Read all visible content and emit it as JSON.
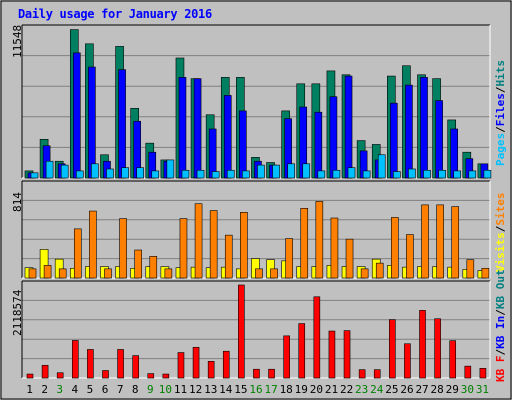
{
  "chart_data": [
    {
      "type": "bar",
      "title": "Daily usage for January 2016",
      "panel": "top",
      "ymax_label": "11548",
      "ylim": [
        0,
        11548
      ],
      "legend": [
        {
          "text": "Pages",
          "color": "#00c0ff"
        },
        {
          "text": "/",
          "color": "#000000"
        },
        {
          "text": "Files",
          "color": "#0000ff"
        },
        {
          "text": "/",
          "color": "#000000"
        },
        {
          "text": "Hits",
          "color": "#008080"
        }
      ],
      "categories": [
        "1",
        "2",
        "3",
        "4",
        "5",
        "6",
        "7",
        "8",
        "9",
        "10",
        "11",
        "12",
        "13",
        "14",
        "15",
        "16",
        "17",
        "18",
        "19",
        "20",
        "21",
        "22",
        "23",
        "24",
        "25",
        "26",
        "27",
        "28",
        "29",
        "30",
        "31"
      ],
      "series": [
        {
          "name": "Hits",
          "color": "#008060",
          "values": [
            550,
            3000,
            1300,
            11500,
            10400,
            1800,
            10200,
            5400,
            2700,
            1400,
            9300,
            7700,
            4900,
            7800,
            7800,
            1600,
            1200,
            5200,
            7300,
            7300,
            8300,
            8000,
            2900,
            2600,
            7900,
            8700,
            8000,
            7700,
            4500,
            2000,
            1100
          ]
        },
        {
          "name": "Files",
          "color": "#0000ff",
          "values": [
            400,
            2500,
            1100,
            9700,
            8600,
            1300,
            8400,
            4400,
            2000,
            1300,
            7800,
            7700,
            3800,
            6400,
            5200,
            1300,
            1000,
            4600,
            5500,
            5100,
            6300,
            7900,
            2100,
            1400,
            5800,
            7200,
            7800,
            6000,
            3800,
            1500,
            1100
          ]
        },
        {
          "name": "Pages",
          "color": "#00c0ff",
          "values": [
            400,
            1300,
            1000,
            550,
            1100,
            700,
            800,
            800,
            550,
            1400,
            600,
            600,
            500,
            600,
            550,
            1000,
            1000,
            1100,
            1100,
            550,
            600,
            800,
            550,
            1800,
            500,
            700,
            600,
            600,
            550,
            550,
            600
          ]
        }
      ]
    },
    {
      "type": "bar",
      "panel": "middle",
      "ymax_label": "814",
      "ylim": [
        0,
        814
      ],
      "legend": [
        {
          "text": "Visits",
          "color": "#ffff00"
        },
        {
          "text": "/",
          "color": "#000000"
        },
        {
          "text": "Sites",
          "color": "#ff8000"
        }
      ],
      "categories": [
        "1",
        "2",
        "3",
        "4",
        "5",
        "6",
        "7",
        "8",
        "9",
        "10",
        "11",
        "12",
        "13",
        "14",
        "15",
        "16",
        "17",
        "18",
        "19",
        "20",
        "21",
        "22",
        "23",
        "24",
        "25",
        "26",
        "27",
        "28",
        "29",
        "30",
        "31"
      ],
      "series": [
        {
          "name": "Visits",
          "color": "#ffff00",
          "values": [
            90,
            250,
            165,
            85,
            100,
            100,
            100,
            85,
            100,
            100,
            90,
            95,
            90,
            95,
            80,
            170,
            160,
            150,
            100,
            100,
            110,
            100,
            100,
            165,
            110,
            95,
            100,
            100,
            95,
            75,
            65
          ]
        },
        {
          "name": "Sites",
          "color": "#ff8000",
          "values": [
            80,
            110,
            80,
            430,
            586,
            80,
            520,
            245,
            190,
            80,
            520,
            650,
            590,
            375,
            575,
            80,
            80,
            345,
            610,
            670,
            525,
            340,
            80,
            130,
            530,
            380,
            640,
            640,
            625,
            160,
            85
          ]
        }
      ]
    },
    {
      "type": "bar",
      "panel": "bottom",
      "ymax_label": "2118574",
      "ylim": [
        0,
        2118574
      ],
      "legend": [
        {
          "text": "KB F",
          "color": "#ff0000"
        },
        {
          "text": "/",
          "color": "#000000"
        },
        {
          "text": "KB In",
          "color": "#0000ff"
        },
        {
          "text": "/",
          "color": "#000000"
        },
        {
          "text": "KB Out",
          "color": "#008080"
        }
      ],
      "categories": [
        "1",
        "2",
        "3",
        "4",
        "5",
        "6",
        "7",
        "8",
        "9",
        "10",
        "11",
        "12",
        "13",
        "14",
        "15",
        "16",
        "17",
        "18",
        "19",
        "20",
        "21",
        "22",
        "23",
        "24",
        "25",
        "26",
        "27",
        "28",
        "29",
        "30",
        "31"
      ],
      "series": [
        {
          "name": "KB F",
          "color": "#ff0000",
          "values": [
            90000,
            290000,
            120000,
            855000,
            650000,
            170000,
            650000,
            510000,
            100000,
            90000,
            580000,
            700000,
            380000,
            610000,
            2118574,
            200000,
            200000,
            960000,
            1240000,
            1850000,
            1070000,
            1080000,
            190000,
            190000,
            1330000,
            780000,
            1540000,
            1350000,
            850000,
            270000,
            220000
          ]
        }
      ]
    }
  ],
  "x_labels": [
    {
      "text": "1",
      "color": "#000000"
    },
    {
      "text": "2",
      "color": "#000000"
    },
    {
      "text": "3",
      "color": "#008000"
    },
    {
      "text": "4",
      "color": "#000000"
    },
    {
      "text": "5",
      "color": "#000000"
    },
    {
      "text": "6",
      "color": "#000000"
    },
    {
      "text": "7",
      "color": "#000000"
    },
    {
      "text": "8",
      "color": "#000000"
    },
    {
      "text": "9",
      "color": "#008000"
    },
    {
      "text": "10",
      "color": "#008000"
    },
    {
      "text": "11",
      "color": "#000000"
    },
    {
      "text": "12",
      "color": "#000000"
    },
    {
      "text": "13",
      "color": "#000000"
    },
    {
      "text": "14",
      "color": "#000000"
    },
    {
      "text": "15",
      "color": "#000000"
    },
    {
      "text": "16",
      "color": "#008000"
    },
    {
      "text": "17",
      "color": "#008000"
    },
    {
      "text": "18",
      "color": "#000000"
    },
    {
      "text": "19",
      "color": "#000000"
    },
    {
      "text": "20",
      "color": "#000000"
    },
    {
      "text": "21",
      "color": "#000000"
    },
    {
      "text": "22",
      "color": "#000000"
    },
    {
      "text": "23",
      "color": "#008000"
    },
    {
      "text": "24",
      "color": "#008000"
    },
    {
      "text": "25",
      "color": "#000000"
    },
    {
      "text": "26",
      "color": "#000000"
    },
    {
      "text": "27",
      "color": "#000000"
    },
    {
      "text": "28",
      "color": "#000000"
    },
    {
      "text": "29",
      "color": "#000000"
    },
    {
      "text": "30",
      "color": "#008000"
    },
    {
      "text": "31",
      "color": "#008000"
    }
  ]
}
